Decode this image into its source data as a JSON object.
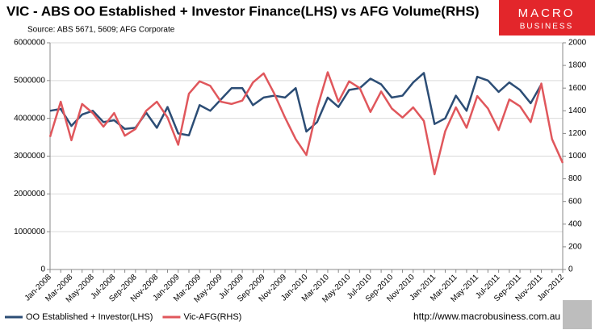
{
  "chart_data": {
    "type": "line",
    "title": "VIC - ABS OO Established + Investor Finance(LHS) vs AFG Volume(RHS)",
    "subtitle": "Source: ABS 5671, 5609; AFG Corporate",
    "categories": [
      "Jan-2008",
      null,
      "Mar-2008",
      null,
      "May-2008",
      null,
      "Jul-2008",
      null,
      "Sep-2008",
      null,
      "Nov-2008",
      null,
      "Jan-2009",
      null,
      "Mar-2009",
      null,
      "May-2009",
      null,
      "Jul-2009",
      null,
      "Sep-2009",
      null,
      "Nov-2009",
      null,
      "Jan-2010",
      null,
      "Mar-2010",
      null,
      "May-2010",
      null,
      "Jul-2010",
      null,
      "Sep-2010",
      null,
      "Nov-2010",
      null,
      "Jan-2011",
      null,
      "Mar-2011",
      null,
      "May-2011",
      null,
      "Jul-2011",
      null,
      "Sep-2011",
      null,
      "Nov-2011",
      null,
      "Jan-2012"
    ],
    "series": [
      {
        "name": "OO Established + Investor(LHS)",
        "color": "#2c4d75",
        "values": [
          4200000,
          4250000,
          3800000,
          4100000,
          4200000,
          3900000,
          3950000,
          3720000,
          3750000,
          4150000,
          3750000,
          4300000,
          3600000,
          3550000,
          4350000,
          4200000,
          4500000,
          4800000,
          4800000,
          4350000,
          4550000,
          4600000,
          4550000,
          4800000,
          3650000,
          3900000,
          4550000,
          4300000,
          4750000,
          4800000,
          5050000,
          4900000,
          4550000,
          4600000,
          4950000,
          5200000,
          3850000,
          4000000,
          4600000,
          4200000,
          5100000,
          5000000,
          4700000,
          4950000,
          4750000,
          4400000,
          4900000,
          null,
          null
        ]
      },
      {
        "name": "Vic-AFG(RHS)",
        "color": "#e0575c",
        "axis": "y2",
        "values": [
          1170,
          1480,
          1140,
          1460,
          1380,
          1260,
          1380,
          1180,
          1240,
          1400,
          1480,
          1340,
          1100,
          1550,
          1660,
          1620,
          1480,
          1460,
          1490,
          1650,
          1730,
          1550,
          1340,
          1150,
          1010,
          1420,
          1740,
          1480,
          1660,
          1600,
          1390,
          1570,
          1420,
          1340,
          1430,
          1310,
          840,
          1220,
          1430,
          1250,
          1530,
          1420,
          1230,
          1500,
          1440,
          1300,
          1640,
          1150,
          940
        ]
      }
    ],
    "ylim": [
      0,
      6000000
    ],
    "yticks": [
      0,
      1000000,
      2000000,
      3000000,
      4000000,
      5000000,
      6000000
    ],
    "y2lim": [
      0,
      2000
    ],
    "y2ticks": [
      0,
      200,
      400,
      600,
      800,
      1000,
      1200,
      1400,
      1600,
      1800,
      2000
    ],
    "grid": true,
    "legend": "bottom"
  },
  "logo": {
    "line1": "MACRO",
    "line2": "BUSINESS"
  },
  "footer_url": "http://www.macrobusiness.com.au"
}
